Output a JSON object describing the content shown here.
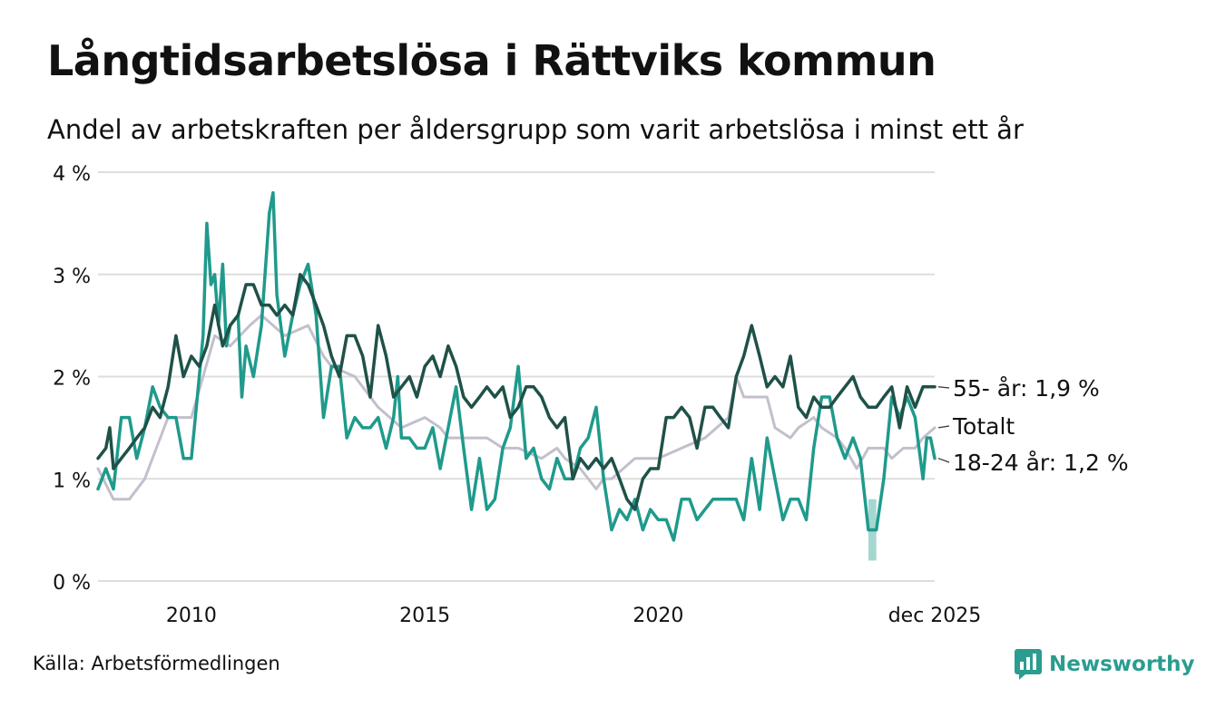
{
  "header": {
    "title": "Långtidsarbetslösa i Rättviks kommun",
    "subtitle": "Andel av arbetskraften per åldersgrupp som varit arbetslösa i minst ett år"
  },
  "footer": {
    "source": "Källa: Arbetsförmedlingen",
    "brand": "Newsworthy"
  },
  "colors": {
    "s55": "#1f5148",
    "s1824": "#1f9a8c",
    "total": "#c3bfcc",
    "band": "#9ad3cb",
    "grid": "#dddddd"
  },
  "chart_data": {
    "type": "line",
    "title": "Långtidsarbetslösa i Rättviks kommun",
    "xlabel": "",
    "ylabel": "",
    "ylim": [
      0,
      4
    ],
    "xlim": [
      2008.0,
      2025.92
    ],
    "y_ticks": [
      {
        "v": 0,
        "label": "0 %"
      },
      {
        "v": 1,
        "label": "1 %"
      },
      {
        "v": 2,
        "label": "2 %"
      },
      {
        "v": 3,
        "label": "3 %"
      },
      {
        "v": 4,
        "label": "4 %"
      }
    ],
    "x_ticks": [
      {
        "v": 2010,
        "label": "2010"
      },
      {
        "v": 2015,
        "label": "2015"
      },
      {
        "v": 2020,
        "label": "2020"
      },
      {
        "v": 2025.92,
        "label": "dec 2025"
      }
    ],
    "series": [
      {
        "key": "total",
        "name": "Totalt",
        "end_label": "Totalt",
        "points": [
          [
            2008.0,
            1.1
          ],
          [
            2008.33,
            0.8
          ],
          [
            2008.67,
            0.8
          ],
          [
            2009.0,
            1.0
          ],
          [
            2009.25,
            1.3
          ],
          [
            2009.5,
            1.6
          ],
          [
            2010.0,
            1.6
          ],
          [
            2010.25,
            2.0
          ],
          [
            2010.5,
            2.4
          ],
          [
            2010.83,
            2.3
          ],
          [
            2011.25,
            2.5
          ],
          [
            2011.5,
            2.6
          ],
          [
            2012.0,
            2.4
          ],
          [
            2012.5,
            2.5
          ],
          [
            2012.83,
            2.2
          ],
          [
            2013.0,
            2.1
          ],
          [
            2013.5,
            2.0
          ],
          [
            2014.0,
            1.7
          ],
          [
            2014.25,
            1.6
          ],
          [
            2014.5,
            1.5
          ],
          [
            2015.0,
            1.6
          ],
          [
            2015.33,
            1.5
          ],
          [
            2015.5,
            1.4
          ],
          [
            2016.0,
            1.4
          ],
          [
            2016.33,
            1.4
          ],
          [
            2016.67,
            1.3
          ],
          [
            2017.0,
            1.3
          ],
          [
            2017.5,
            1.2
          ],
          [
            2017.83,
            1.3
          ],
          [
            2018.0,
            1.2
          ],
          [
            2018.33,
            1.1
          ],
          [
            2018.67,
            0.9
          ],
          [
            2018.83,
            1.0
          ],
          [
            2019.0,
            1.0
          ],
          [
            2019.25,
            1.1
          ],
          [
            2019.5,
            1.2
          ],
          [
            2020.0,
            1.2
          ],
          [
            2020.5,
            1.3
          ],
          [
            2021.0,
            1.4
          ],
          [
            2021.5,
            1.6
          ],
          [
            2021.67,
            2.0
          ],
          [
            2021.83,
            1.8
          ],
          [
            2022.0,
            1.8
          ],
          [
            2022.33,
            1.8
          ],
          [
            2022.5,
            1.5
          ],
          [
            2022.83,
            1.4
          ],
          [
            2023.0,
            1.5
          ],
          [
            2023.33,
            1.6
          ],
          [
            2023.5,
            1.5
          ],
          [
            2023.83,
            1.4
          ],
          [
            2024.0,
            1.3
          ],
          [
            2024.25,
            1.1
          ],
          [
            2024.5,
            1.3
          ],
          [
            2024.83,
            1.3
          ],
          [
            2025.0,
            1.2
          ],
          [
            2025.25,
            1.3
          ],
          [
            2025.5,
            1.3
          ],
          [
            2025.67,
            1.4
          ],
          [
            2025.92,
            1.5
          ]
        ]
      },
      {
        "key": "s1824",
        "name": "18-24 år",
        "end_label": "18-24 år: 1,2 %",
        "points": [
          [
            2008.0,
            0.9
          ],
          [
            2008.17,
            1.1
          ],
          [
            2008.33,
            0.9
          ],
          [
            2008.5,
            1.6
          ],
          [
            2008.67,
            1.6
          ],
          [
            2008.83,
            1.2
          ],
          [
            2009.0,
            1.5
          ],
          [
            2009.17,
            1.9
          ],
          [
            2009.33,
            1.7
          ],
          [
            2009.5,
            1.6
          ],
          [
            2009.67,
            1.6
          ],
          [
            2009.83,
            1.2
          ],
          [
            2010.0,
            1.2
          ],
          [
            2010.17,
            2.0
          ],
          [
            2010.25,
            2.4
          ],
          [
            2010.33,
            3.5
          ],
          [
            2010.42,
            2.9
          ],
          [
            2010.5,
            3.0
          ],
          [
            2010.58,
            2.5
          ],
          [
            2010.67,
            3.1
          ],
          [
            2010.75,
            2.3
          ],
          [
            2010.83,
            2.5
          ],
          [
            2011.0,
            2.6
          ],
          [
            2011.08,
            1.8
          ],
          [
            2011.17,
            2.3
          ],
          [
            2011.33,
            2.0
          ],
          [
            2011.5,
            2.5
          ],
          [
            2011.67,
            3.6
          ],
          [
            2011.75,
            3.8
          ],
          [
            2011.83,
            2.8
          ],
          [
            2012.0,
            2.2
          ],
          [
            2012.17,
            2.6
          ],
          [
            2012.33,
            2.9
          ],
          [
            2012.5,
            3.1
          ],
          [
            2012.67,
            2.6
          ],
          [
            2012.83,
            1.6
          ],
          [
            2013.0,
            2.1
          ],
          [
            2013.17,
            2.1
          ],
          [
            2013.33,
            1.4
          ],
          [
            2013.5,
            1.6
          ],
          [
            2013.67,
            1.5
          ],
          [
            2013.83,
            1.5
          ],
          [
            2014.0,
            1.6
          ],
          [
            2014.17,
            1.3
          ],
          [
            2014.33,
            1.6
          ],
          [
            2014.42,
            2.0
          ],
          [
            2014.5,
            1.4
          ],
          [
            2014.67,
            1.4
          ],
          [
            2014.83,
            1.3
          ],
          [
            2015.0,
            1.3
          ],
          [
            2015.17,
            1.5
          ],
          [
            2015.33,
            1.1
          ],
          [
            2015.5,
            1.5
          ],
          [
            2015.67,
            1.9
          ],
          [
            2015.83,
            1.3
          ],
          [
            2016.0,
            0.7
          ],
          [
            2016.17,
            1.2
          ],
          [
            2016.33,
            0.7
          ],
          [
            2016.5,
            0.8
          ],
          [
            2016.67,
            1.3
          ],
          [
            2016.83,
            1.5
          ],
          [
            2017.0,
            2.1
          ],
          [
            2017.17,
            1.2
          ],
          [
            2017.33,
            1.3
          ],
          [
            2017.5,
            1.0
          ],
          [
            2017.67,
            0.9
          ],
          [
            2017.83,
            1.2
          ],
          [
            2018.0,
            1.0
          ],
          [
            2018.17,
            1.0
          ],
          [
            2018.33,
            1.3
          ],
          [
            2018.5,
            1.4
          ],
          [
            2018.67,
            1.7
          ],
          [
            2018.83,
            1.0
          ],
          [
            2019.0,
            0.5
          ],
          [
            2019.17,
            0.7
          ],
          [
            2019.33,
            0.6
          ],
          [
            2019.5,
            0.8
          ],
          [
            2019.67,
            0.5
          ],
          [
            2019.83,
            0.7
          ],
          [
            2020.0,
            0.6
          ],
          [
            2020.17,
            0.6
          ],
          [
            2020.33,
            0.4
          ],
          [
            2020.5,
            0.8
          ],
          [
            2020.67,
            0.8
          ],
          [
            2020.83,
            0.6
          ],
          [
            2021.0,
            0.7
          ],
          [
            2021.17,
            0.8
          ],
          [
            2021.33,
            0.8
          ],
          [
            2021.5,
            0.8
          ],
          [
            2021.67,
            0.8
          ],
          [
            2021.83,
            0.6
          ],
          [
            2022.0,
            1.2
          ],
          [
            2022.17,
            0.7
          ],
          [
            2022.33,
            1.4
          ],
          [
            2022.5,
            1.0
          ],
          [
            2022.67,
            0.6
          ],
          [
            2022.83,
            0.8
          ],
          [
            2023.0,
            0.8
          ],
          [
            2023.17,
            0.6
          ],
          [
            2023.33,
            1.3
          ],
          [
            2023.5,
            1.8
          ],
          [
            2023.67,
            1.8
          ],
          [
            2023.83,
            1.4
          ],
          [
            2024.0,
            1.2
          ],
          [
            2024.17,
            1.4
          ],
          [
            2024.33,
            1.2
          ],
          [
            2024.5,
            0.5
          ],
          [
            2024.67,
            0.5
          ],
          [
            2024.83,
            1.0
          ],
          [
            2025.0,
            1.8
          ],
          [
            2025.17,
            1.6
          ],
          [
            2025.33,
            1.8
          ],
          [
            2025.5,
            1.6
          ],
          [
            2025.67,
            1.0
          ],
          [
            2025.75,
            1.4
          ],
          [
            2025.83,
            1.4
          ],
          [
            2025.92,
            1.2
          ]
        ]
      },
      {
        "key": "s55",
        "name": "55- år",
        "end_label": "55- år: 1,9 %",
        "points": [
          [
            2008.0,
            1.2
          ],
          [
            2008.17,
            1.3
          ],
          [
            2008.25,
            1.5
          ],
          [
            2008.33,
            1.1
          ],
          [
            2008.5,
            1.2
          ],
          [
            2008.67,
            1.3
          ],
          [
            2008.83,
            1.4
          ],
          [
            2009.0,
            1.5
          ],
          [
            2009.17,
            1.7
          ],
          [
            2009.33,
            1.6
          ],
          [
            2009.5,
            1.9
          ],
          [
            2009.67,
            2.4
          ],
          [
            2009.83,
            2.0
          ],
          [
            2010.0,
            2.2
          ],
          [
            2010.17,
            2.1
          ],
          [
            2010.33,
            2.3
          ],
          [
            2010.5,
            2.7
          ],
          [
            2010.67,
            2.3
          ],
          [
            2010.83,
            2.5
          ],
          [
            2011.0,
            2.6
          ],
          [
            2011.17,
            2.9
          ],
          [
            2011.33,
            2.9
          ],
          [
            2011.5,
            2.7
          ],
          [
            2011.67,
            2.7
          ],
          [
            2011.83,
            2.6
          ],
          [
            2012.0,
            2.7
          ],
          [
            2012.17,
            2.6
          ],
          [
            2012.33,
            3.0
          ],
          [
            2012.5,
            2.9
          ],
          [
            2012.67,
            2.7
          ],
          [
            2012.83,
            2.5
          ],
          [
            2013.0,
            2.2
          ],
          [
            2013.17,
            2.0
          ],
          [
            2013.33,
            2.4
          ],
          [
            2013.5,
            2.4
          ],
          [
            2013.67,
            2.2
          ],
          [
            2013.83,
            1.8
          ],
          [
            2014.0,
            2.5
          ],
          [
            2014.17,
            2.2
          ],
          [
            2014.33,
            1.8
          ],
          [
            2014.5,
            1.9
          ],
          [
            2014.67,
            2.0
          ],
          [
            2014.83,
            1.8
          ],
          [
            2015.0,
            2.1
          ],
          [
            2015.17,
            2.2
          ],
          [
            2015.33,
            2.0
          ],
          [
            2015.5,
            2.3
          ],
          [
            2015.67,
            2.1
          ],
          [
            2015.83,
            1.8
          ],
          [
            2016.0,
            1.7
          ],
          [
            2016.17,
            1.8
          ],
          [
            2016.33,
            1.9
          ],
          [
            2016.5,
            1.8
          ],
          [
            2016.67,
            1.9
          ],
          [
            2016.83,
            1.6
          ],
          [
            2017.0,
            1.7
          ],
          [
            2017.17,
            1.9
          ],
          [
            2017.33,
            1.9
          ],
          [
            2017.5,
            1.8
          ],
          [
            2017.67,
            1.6
          ],
          [
            2017.83,
            1.5
          ],
          [
            2018.0,
            1.6
          ],
          [
            2018.17,
            1.0
          ],
          [
            2018.33,
            1.2
          ],
          [
            2018.5,
            1.1
          ],
          [
            2018.67,
            1.2
          ],
          [
            2018.83,
            1.1
          ],
          [
            2019.0,
            1.2
          ],
          [
            2019.17,
            1.0
          ],
          [
            2019.33,
            0.8
          ],
          [
            2019.5,
            0.7
          ],
          [
            2019.67,
            1.0
          ],
          [
            2019.83,
            1.1
          ],
          [
            2020.0,
            1.1
          ],
          [
            2020.17,
            1.6
          ],
          [
            2020.33,
            1.6
          ],
          [
            2020.5,
            1.7
          ],
          [
            2020.67,
            1.6
          ],
          [
            2020.83,
            1.3
          ],
          [
            2021.0,
            1.7
          ],
          [
            2021.17,
            1.7
          ],
          [
            2021.33,
            1.6
          ],
          [
            2021.5,
            1.5
          ],
          [
            2021.67,
            2.0
          ],
          [
            2021.83,
            2.2
          ],
          [
            2022.0,
            2.5
          ],
          [
            2022.17,
            2.2
          ],
          [
            2022.33,
            1.9
          ],
          [
            2022.5,
            2.0
          ],
          [
            2022.67,
            1.9
          ],
          [
            2022.83,
            2.2
          ],
          [
            2023.0,
            1.7
          ],
          [
            2023.17,
            1.6
          ],
          [
            2023.33,
            1.8
          ],
          [
            2023.5,
            1.7
          ],
          [
            2023.67,
            1.7
          ],
          [
            2023.83,
            1.8
          ],
          [
            2024.0,
            1.9
          ],
          [
            2024.17,
            2.0
          ],
          [
            2024.33,
            1.8
          ],
          [
            2024.5,
            1.7
          ],
          [
            2024.67,
            1.7
          ],
          [
            2024.83,
            1.8
          ],
          [
            2025.0,
            1.9
          ],
          [
            2025.17,
            1.5
          ],
          [
            2025.33,
            1.9
          ],
          [
            2025.5,
            1.7
          ],
          [
            2025.67,
            1.9
          ],
          [
            2025.92,
            1.9
          ]
        ]
      }
    ],
    "bands": [
      {
        "series": "18-24 år",
        "x0": 2024.5,
        "x1": 2024.67,
        "low": 0.2,
        "high": 0.8
      }
    ]
  }
}
